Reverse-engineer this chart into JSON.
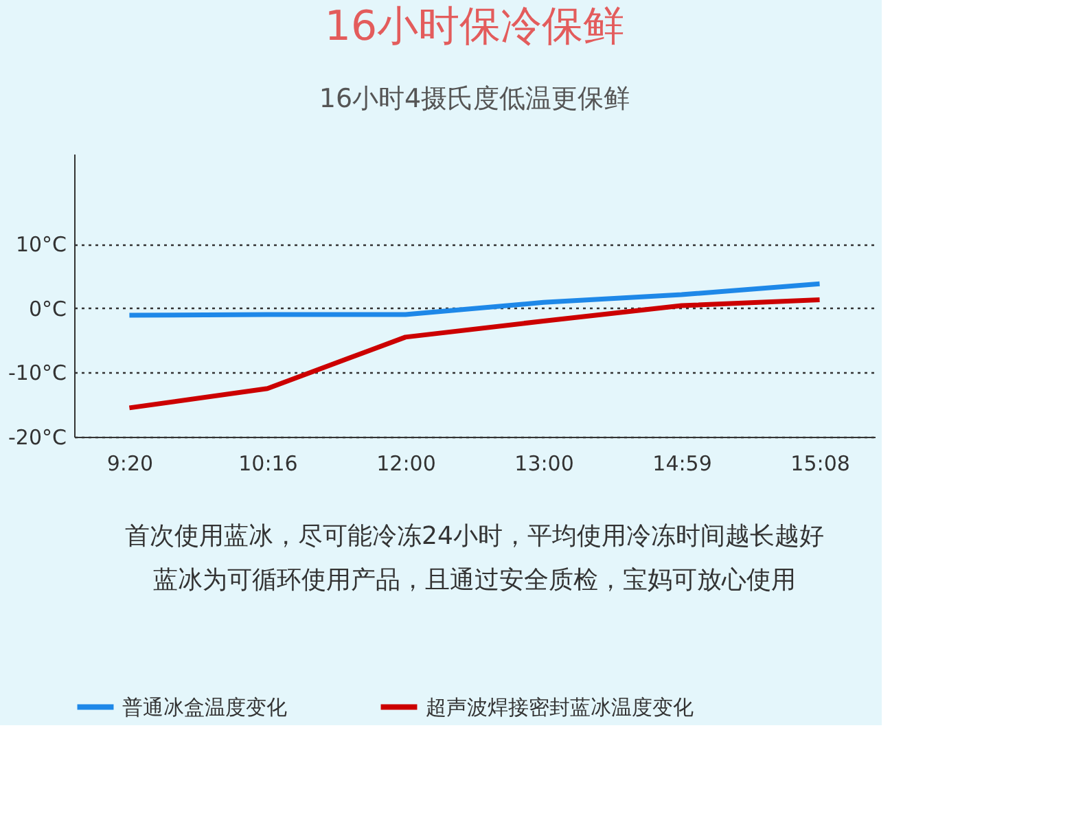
{
  "chart_data": {
    "type": "line",
    "title": "16小时保冷保鲜",
    "subtitle": "16小时4摄氏度低温更保鲜",
    "categories": [
      "9:20",
      "10:16",
      "12:00",
      "13:00",
      "14:59",
      "15:08"
    ],
    "series": [
      {
        "name": "普通冰盒温度变化",
        "color": "#1e88e8",
        "values": [
          -1.1,
          -1,
          -1,
          0.9,
          2.1,
          3.8
        ]
      },
      {
        "name": "超声波焊接密封蓝冰温度变化",
        "color": "#cc0000",
        "values": [
          -15.5,
          -12.5,
          -4.5,
          -2,
          0.4,
          1.3
        ]
      }
    ],
    "ylim": [
      -20,
      24
    ],
    "yticks": [
      {
        "value": -20,
        "label": "-20°C"
      },
      {
        "value": -10,
        "label": "-10°C"
      },
      {
        "value": 0,
        "label": "0°C"
      },
      {
        "value": 10,
        "label": "10°C"
      }
    ],
    "grid": "y",
    "legend": "bottom",
    "line_style": "solid",
    "annotations": [
      "首次使用蓝冰，尽可能冷冻24小时，平均使用冷冻时间越长越好",
      "蓝冰为可循环使用产品，且通过安全质检，宝妈可放心使用"
    ]
  }
}
